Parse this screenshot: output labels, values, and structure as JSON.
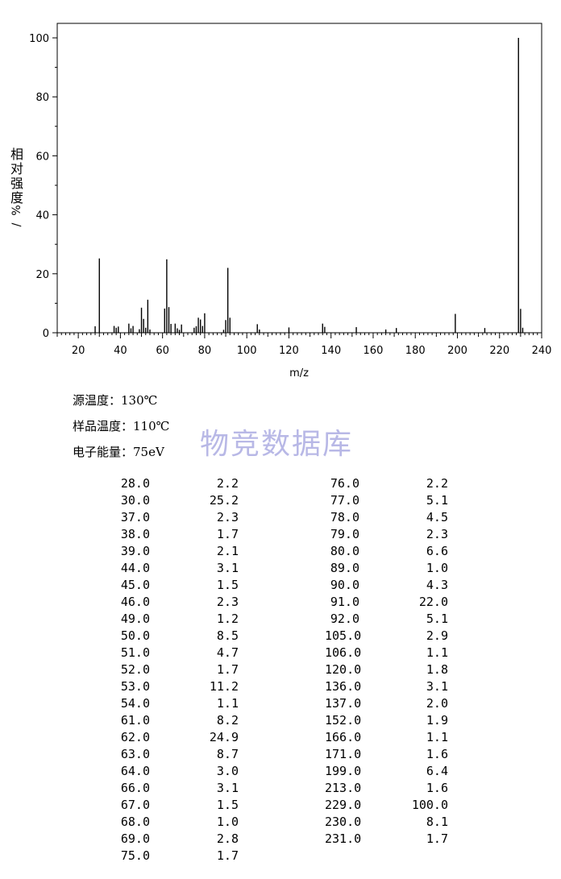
{
  "chart_data": {
    "type": "bar",
    "xlabel": "m/z",
    "ylabel": "相对强度%/",
    "xlim": [
      10,
      240
    ],
    "ylim": [
      0,
      105
    ],
    "xticks": [
      20,
      40,
      60,
      80,
      100,
      120,
      140,
      160,
      180,
      200,
      220,
      240
    ],
    "yticks": [
      0,
      20,
      40,
      60,
      80,
      100
    ],
    "x": [
      28,
      30,
      37,
      38,
      39,
      44,
      45,
      46,
      49,
      50,
      51,
      52,
      53,
      54,
      61,
      62,
      63,
      64,
      66,
      67,
      68,
      69,
      75,
      76,
      77,
      78,
      79,
      80,
      89,
      90,
      91,
      92,
      105,
      106,
      120,
      136,
      137,
      152,
      166,
      171,
      199,
      213,
      229,
      230,
      231
    ],
    "values": [
      2.2,
      25.2,
      2.3,
      1.7,
      2.1,
      3.1,
      1.5,
      2.3,
      1.2,
      8.5,
      4.7,
      1.7,
      11.2,
      1.1,
      8.2,
      24.9,
      8.7,
      3.0,
      3.1,
      1.5,
      1.0,
      2.8,
      1.7,
      2.2,
      5.1,
      4.5,
      2.3,
      6.6,
      1.0,
      4.3,
      22.0,
      5.1,
      2.9,
      1.1,
      1.8,
      3.1,
      2.0,
      1.9,
      1.1,
      1.6,
      6.4,
      1.6,
      100.0,
      8.1,
      1.7
    ],
    "grid": false
  },
  "info": {
    "source_temp": "源温度：130℃",
    "sample_temp": "样品温度：110℃",
    "electron_energy": "电子能量：75eV"
  },
  "watermark": "物竞数据库",
  "peak_table": {
    "left": [
      [
        "28.0",
        "2.2"
      ],
      [
        "30.0",
        "25.2"
      ],
      [
        "37.0",
        "2.3"
      ],
      [
        "38.0",
        "1.7"
      ],
      [
        "39.0",
        "2.1"
      ],
      [
        "44.0",
        "3.1"
      ],
      [
        "45.0",
        "1.5"
      ],
      [
        "46.0",
        "2.3"
      ],
      [
        "49.0",
        "1.2"
      ],
      [
        "50.0",
        "8.5"
      ],
      [
        "51.0",
        "4.7"
      ],
      [
        "52.0",
        "1.7"
      ],
      [
        "53.0",
        "11.2"
      ],
      [
        "54.0",
        "1.1"
      ],
      [
        "61.0",
        "8.2"
      ],
      [
        "62.0",
        "24.9"
      ],
      [
        "63.0",
        "8.7"
      ],
      [
        "64.0",
        "3.0"
      ],
      [
        "66.0",
        "3.1"
      ],
      [
        "67.0",
        "1.5"
      ],
      [
        "68.0",
        "1.0"
      ],
      [
        "69.0",
        "2.8"
      ],
      [
        "75.0",
        "1.7"
      ]
    ],
    "right": [
      [
        "76.0",
        "2.2"
      ],
      [
        "77.0",
        "5.1"
      ],
      [
        "78.0",
        "4.5"
      ],
      [
        "79.0",
        "2.3"
      ],
      [
        "80.0",
        "6.6"
      ],
      [
        "89.0",
        "1.0"
      ],
      [
        "90.0",
        "4.3"
      ],
      [
        "91.0",
        "22.0"
      ],
      [
        "92.0",
        "5.1"
      ],
      [
        "105.0",
        "2.9"
      ],
      [
        "106.0",
        "1.1"
      ],
      [
        "120.0",
        "1.8"
      ],
      [
        "136.0",
        "3.1"
      ],
      [
        "137.0",
        "2.0"
      ],
      [
        "152.0",
        "1.9"
      ],
      [
        "166.0",
        "1.1"
      ],
      [
        "171.0",
        "1.6"
      ],
      [
        "199.0",
        "6.4"
      ],
      [
        "213.0",
        "1.6"
      ],
      [
        "229.0",
        "100.0"
      ],
      [
        "230.0",
        "8.1"
      ],
      [
        "231.0",
        "1.7"
      ]
    ]
  }
}
